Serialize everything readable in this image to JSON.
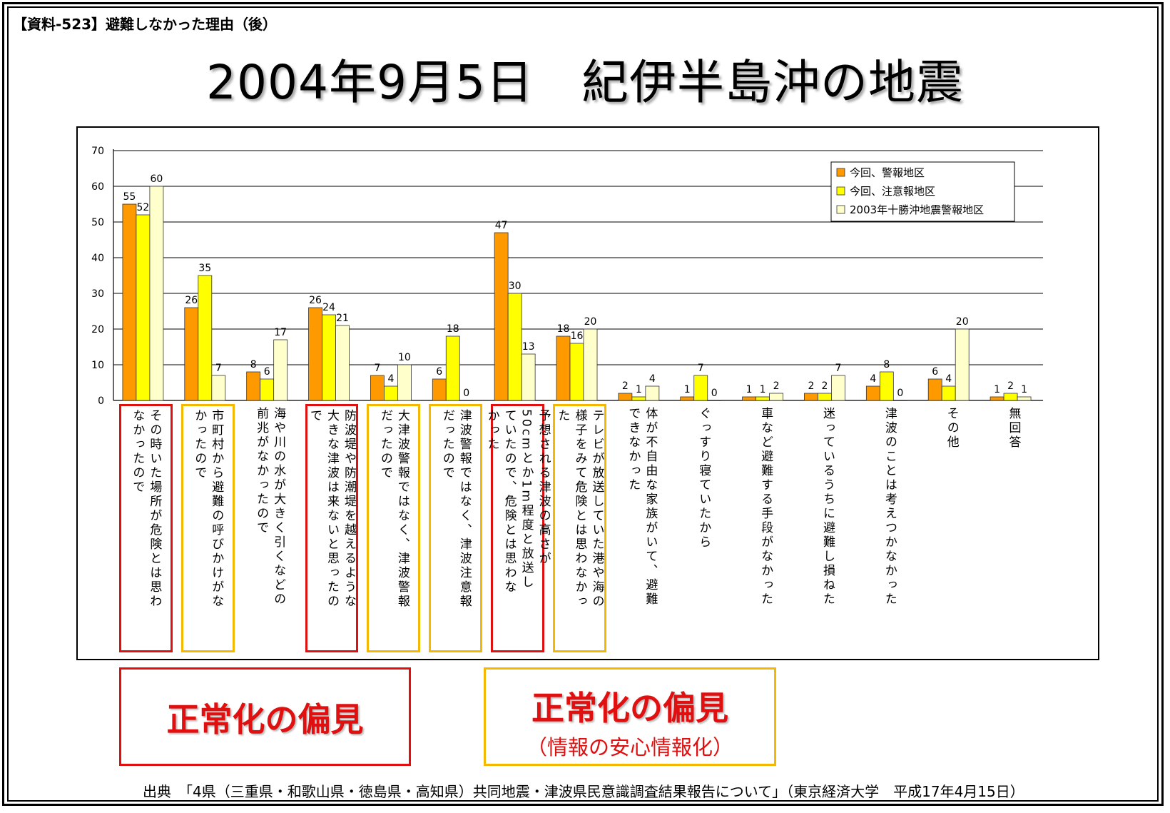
{
  "doc_label": "【資料-523】避難しなかった理由（後）",
  "title": "2004年9月5日　紀伊半島沖の地震",
  "colors": {
    "series1": "#ff9900",
    "series2": "#ffff00",
    "series3": "#ffffcc",
    "red_box": "#e01010",
    "orange_box": "#f5b800"
  },
  "chart_data": {
    "type": "bar",
    "ylim": [
      0,
      70
    ],
    "yticks": [
      "0",
      "10",
      "20",
      "30",
      "40",
      "50",
      "60",
      "70"
    ],
    "grid": true,
    "legend_position": "top-right",
    "categories": [
      [
        "その時いた場所が危険とは思わ",
        "なかったので"
      ],
      [
        "市町村から避難の呼びかけがな",
        "かったので"
      ],
      [
        "海や川の水が大きく引くなどの",
        "前兆がなかったので"
      ],
      [
        "防波堤や防潮堤を越えるような",
        "大きな津波は来ないと思ったの",
        "で"
      ],
      [
        "大津波警報ではなく、津波警報",
        "だったので"
      ],
      [
        "津波警報ではなく、津波注意報",
        "だったので"
      ],
      [
        "予想される津波の高さが",
        "50cmとか1m程度と放送し",
        "ていたので、危険とは思わな",
        "かった"
      ],
      [
        "テレビが放送していた港や海の",
        "様子をみて危険とは思わなかっ",
        "た"
      ],
      [
        "体が不自由な家族がいて、避難",
        "できなかった"
      ],
      [
        "ぐっすり寝ていたから"
      ],
      [
        "車など避難する手段がなかった"
      ],
      [
        "迷っているうちに避難し損ねた"
      ],
      [
        "津波のことは考えつかなかった"
      ],
      [
        "その他"
      ],
      [
        "無回答"
      ]
    ],
    "series": [
      {
        "name": "今回、警報地区",
        "values": [
          55,
          26,
          8,
          26,
          7,
          6,
          47,
          18,
          2,
          1,
          1,
          2,
          4,
          6,
          1
        ]
      },
      {
        "name": "今回、注意報地区",
        "values": [
          52,
          35,
          6,
          24,
          4,
          18,
          30,
          16,
          1,
          7,
          1,
          2,
          8,
          4,
          2
        ]
      },
      {
        "name": "2003年十勝沖地震警報地区",
        "values": [
          60,
          7,
          17,
          21,
          10,
          0,
          13,
          20,
          4,
          0,
          2,
          7,
          0,
          20,
          1
        ]
      }
    ]
  },
  "bias_label_1": "正常化の偏見",
  "bias_label_2": "正常化の偏見",
  "bias_sublabel_2": "（情報の安心情報化）",
  "source": "出典　「4県（三重県・和歌山県・徳島県・高知県）共同地震・津波県民意識調査結果報告について」（東京経済大学　平成17年4月15日）"
}
